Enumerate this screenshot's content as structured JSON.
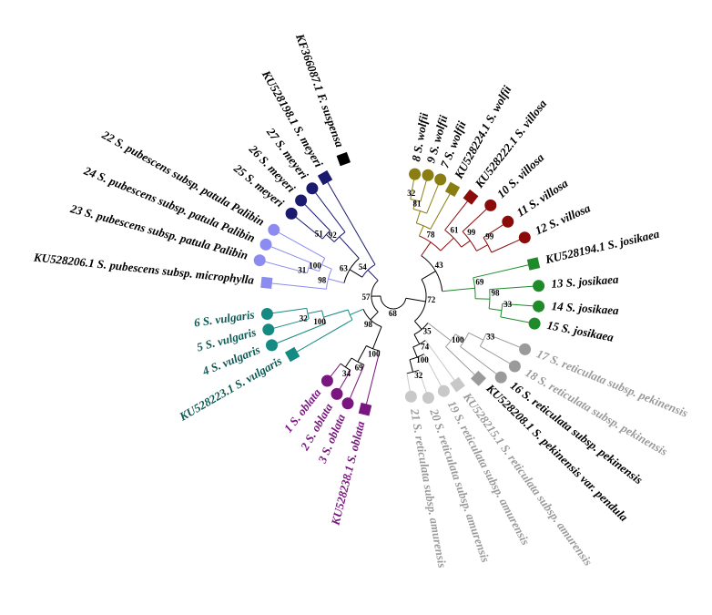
{
  "tree": {
    "colors": {
      "black": "#000000",
      "navy": "#1a1a6e",
      "lavender": "#8c8cf0",
      "teal": "#148a82",
      "teal_text": "#0e5a55",
      "purple": "#7a1680",
      "olive": "#8a7d12",
      "darkred": "#8b0a0a",
      "green": "#1f8a2a",
      "gray": "#9a9a9a",
      "gray_light": "#c8c8c8"
    },
    "tips": [
      {
        "label": "KF366087.1 F. suspensa",
        "marker": "square",
        "color": "black",
        "text_color": "black"
      },
      {
        "label": "KU528198.1 S. meyeri",
        "marker": "square",
        "color": "navy",
        "text_color": "black"
      },
      {
        "label": "27 S. meyeri",
        "marker": "circle",
        "color": "navy",
        "text_color": "black"
      },
      {
        "label": "26 S. meyeri",
        "marker": "circle",
        "color": "navy",
        "text_color": "black"
      },
      {
        "label": "25 S. meyeri",
        "marker": "circle",
        "color": "navy",
        "text_color": "black"
      },
      {
        "label": "22 S. pubescens subsp. patula Palibin",
        "marker": "circle",
        "color": "lavender",
        "text_color": "black"
      },
      {
        "label": "24 S. pubescens subsp. patula Palibin",
        "marker": "circle",
        "color": "lavender",
        "text_color": "black"
      },
      {
        "label": "23 S. pubescens subsp. patula Palibin",
        "marker": "circle",
        "color": "lavender",
        "text_color": "black"
      },
      {
        "label": "KU528206.1 S. pubescens subsp. microphylla",
        "marker": "square",
        "color": "lavender",
        "text_color": "black"
      },
      {
        "label": "6 S. vulgaris",
        "marker": "circle",
        "color": "teal",
        "text_color": "teal_text"
      },
      {
        "label": "5 S. vulgaris",
        "marker": "circle",
        "color": "teal",
        "text_color": "teal_text"
      },
      {
        "label": "4 S. vulgaris",
        "marker": "circle",
        "color": "teal",
        "text_color": "teal_text"
      },
      {
        "label": "KU528223.1 S. vulgaris",
        "marker": "square",
        "color": "teal",
        "text_color": "teal_text"
      },
      {
        "label": "1 S. oblata",
        "marker": "circle",
        "color": "purple",
        "text_color": "purple"
      },
      {
        "label": "2 S. oblata",
        "marker": "circle",
        "color": "purple",
        "text_color": "purple"
      },
      {
        "label": "3 S. oblata",
        "marker": "circle",
        "color": "purple",
        "text_color": "purple"
      },
      {
        "label": "KU528238.1 S. oblata",
        "marker": "square",
        "color": "purple",
        "text_color": "purple"
      },
      {
        "label": "21 S. reticulata subsp. amurensis",
        "marker": "circle",
        "color": "gray_light",
        "text_color": "gray"
      },
      {
        "label": "20 S. reticulata subsp. amurensis",
        "marker": "circle",
        "color": "gray_light",
        "text_color": "gray"
      },
      {
        "label": "19 S. reticulata subsp. amurensis",
        "marker": "circle",
        "color": "gray_light",
        "text_color": "gray"
      },
      {
        "label": "KU528215.1 S. reticulata subsp. amurensis",
        "marker": "square",
        "color": "gray_light",
        "text_color": "gray"
      },
      {
        "label": "KU528208.1 S. pekinensis var. pendula",
        "marker": "square",
        "color": "gray",
        "text_color": "black"
      },
      {
        "label": "16 S. reticulata subsp. pekinensis",
        "marker": "circle",
        "color": "gray",
        "text_color": "black"
      },
      {
        "label": "18 S. reticulata subsp. pekinensis",
        "marker": "circle",
        "color": "gray",
        "text_color": "gray"
      },
      {
        "label": "17 S. reticulata subsp. pekinensis",
        "marker": "circle",
        "color": "gray",
        "text_color": "gray"
      },
      {
        "label": "15 S. josikaea",
        "marker": "circle",
        "color": "green",
        "text_color": "black"
      },
      {
        "label": "14 S. josikaea",
        "marker": "circle",
        "color": "green",
        "text_color": "black"
      },
      {
        "label": "13 S. josikaea",
        "marker": "circle",
        "color": "green",
        "text_color": "black"
      },
      {
        "label": "KU528194.1 S. josikaea",
        "marker": "square",
        "color": "green",
        "text_color": "black"
      },
      {
        "label": "12 S. villosa",
        "marker": "circle",
        "color": "darkred",
        "text_color": "black"
      },
      {
        "label": "11 S. villosa",
        "marker": "circle",
        "color": "darkred",
        "text_color": "black"
      },
      {
        "label": "10 S. villosa",
        "marker": "circle",
        "color": "darkred",
        "text_color": "black"
      },
      {
        "label": "KU528222.1 S. villosa",
        "marker": "square",
        "color": "darkred",
        "text_color": "black"
      },
      {
        "label": "KU528224.1 S. wolfii",
        "marker": "square",
        "color": "olive",
        "text_color": "black"
      },
      {
        "label": "7 S. wolfii",
        "marker": "circle",
        "color": "olive",
        "text_color": "black"
      },
      {
        "label": "9 S. wolfii",
        "marker": "circle",
        "color": "olive",
        "text_color": "black"
      },
      {
        "label": "8 S. wolfii",
        "marker": "circle",
        "color": "olive",
        "text_color": "black"
      }
    ],
    "bootstrap": [
      "51",
      "92",
      "98",
      "100",
      "63",
      "31",
      "57",
      "32",
      "100",
      "69",
      "100",
      "98",
      "54",
      "34",
      "68",
      "100",
      "32",
      "74",
      "35",
      "72",
      "100",
      "33",
      "98",
      "33",
      "43",
      "99",
      "69",
      "78",
      "61",
      "99",
      "32",
      "81"
    ]
  }
}
